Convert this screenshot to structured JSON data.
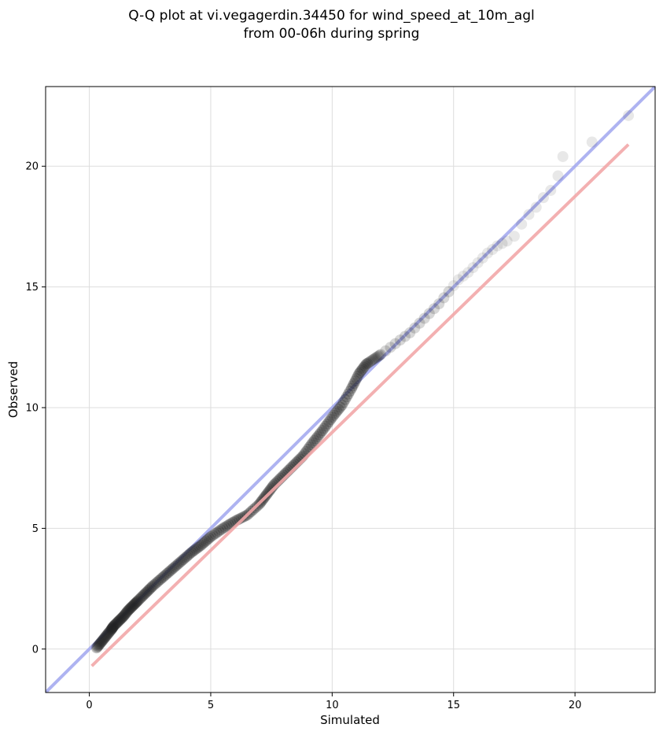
{
  "chart_data": {
    "type": "scatter",
    "title_lines": [
      "Q-Q plot at vi.vegagerdin.34450 for wind_speed_at_10m_agl",
      "from 00-06h during spring"
    ],
    "xlabel": "Simulated",
    "ylabel": "Observed",
    "xlim": [
      -1.8,
      23.3
    ],
    "ylim": [
      -1.8,
      23.3
    ],
    "xticks": [
      0,
      5,
      10,
      15,
      20
    ],
    "yticks": [
      0,
      5,
      10,
      15,
      20
    ],
    "grid": true,
    "identity_line": {
      "color": "#a5abf0",
      "x": [
        -1.8,
        23.3
      ],
      "y": [
        -1.8,
        23.3
      ]
    },
    "fit_line": {
      "color": "#f2a7a9",
      "x": [
        0.1,
        22.2
      ],
      "y": [
        -0.7,
        20.9
      ]
    },
    "point_color": "#222222",
    "quantile_pairs": {
      "x": [
        0.3,
        0.5,
        0.7,
        0.9,
        1.0,
        1.2,
        1.4,
        1.6,
        1.8,
        2.0,
        2.3,
        2.6,
        3.0,
        3.4,
        3.8,
        4.2,
        4.6,
        5.0,
        5.5,
        6.0,
        6.5,
        7.0,
        7.3,
        7.6,
        8.0,
        8.4,
        8.8,
        9.2,
        9.6,
        10.0,
        10.4,
        10.8,
        11.1,
        11.4,
        11.7,
        12.0,
        12.4,
        12.8,
        13.2,
        13.6,
        14.0,
        14.4,
        14.8,
        15.2,
        15.6,
        16.0,
        16.4,
        16.8,
        17.2,
        17.5,
        17.8,
        18.1,
        18.4,
        18.7,
        19.0,
        19.3,
        19.5,
        20.7,
        22.2
      ],
      "y": [
        0.05,
        0.3,
        0.55,
        0.8,
        0.95,
        1.15,
        1.35,
        1.6,
        1.8,
        2.0,
        2.3,
        2.6,
        2.95,
        3.3,
        3.65,
        4.0,
        4.3,
        4.65,
        5.0,
        5.3,
        5.55,
        6.0,
        6.4,
        6.8,
        7.2,
        7.6,
        8.0,
        8.55,
        9.05,
        9.6,
        10.1,
        10.8,
        11.4,
        11.8,
        12.0,
        12.2,
        12.5,
        12.8,
        13.1,
        13.5,
        13.9,
        14.3,
        14.8,
        15.3,
        15.6,
        16.0,
        16.4,
        16.7,
        16.9,
        17.1,
        17.6,
        18.0,
        18.3,
        18.7,
        19.0,
        19.6,
        20.4,
        21.0,
        22.1
      ]
    }
  }
}
